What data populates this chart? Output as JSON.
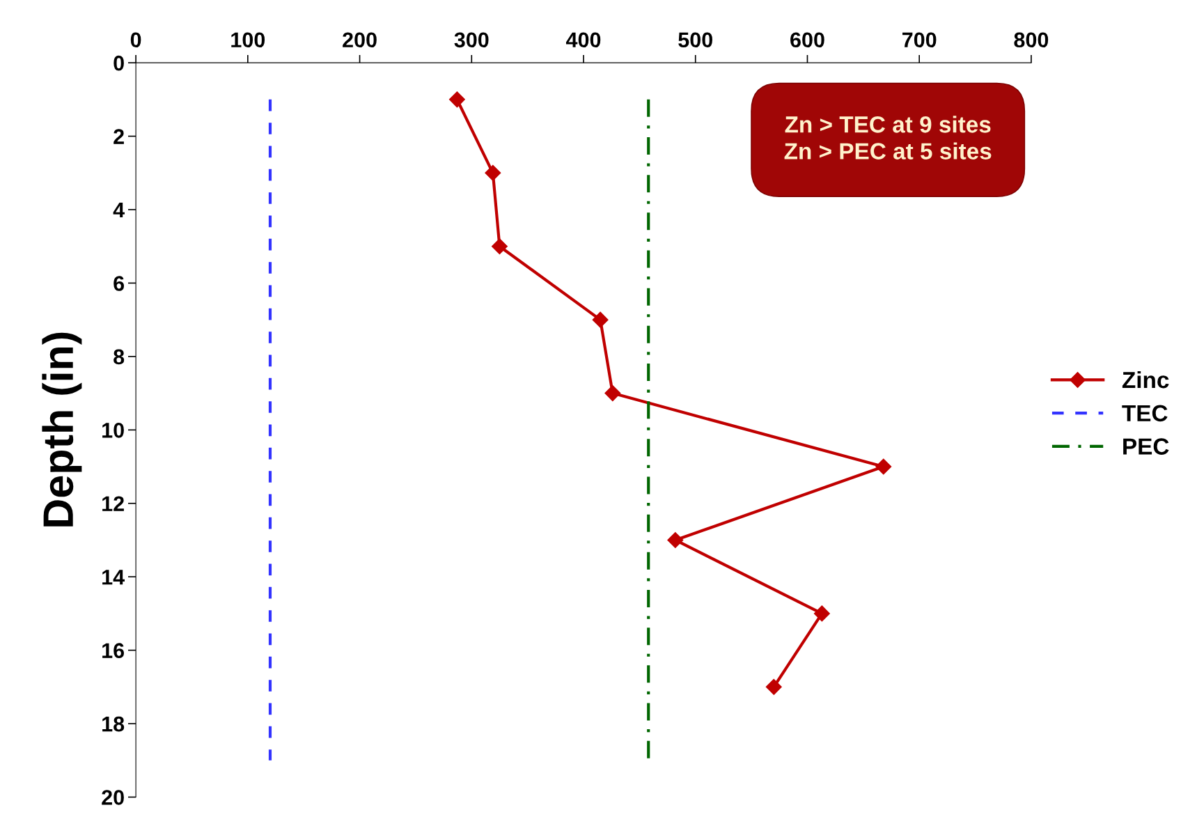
{
  "chart_data": {
    "type": "line",
    "ylabel": "Depth (in)",
    "series": [
      {
        "name": "Zinc",
        "color": "#c00000",
        "marker": "diamond",
        "line_style": "solid",
        "x": [
          287,
          319,
          325,
          415,
          426,
          668,
          482,
          613,
          570
        ],
        "values": [
          1,
          3,
          5,
          7,
          9,
          11,
          13,
          15,
          17
        ]
      },
      {
        "name": "TEC",
        "color": "#3333ff",
        "marker": "none",
        "line_style": "dashed",
        "x": [
          120,
          120
        ],
        "values": [
          1,
          19
        ]
      },
      {
        "name": "PEC",
        "color": "#006600",
        "marker": "none",
        "line_style": "dashdot",
        "x": [
          458,
          458
        ],
        "values": [
          1,
          19
        ]
      }
    ],
    "xlim": [
      0,
      800
    ],
    "xticks": [
      0,
      100,
      200,
      300,
      400,
      500,
      600,
      700,
      800
    ],
    "ylim": [
      20,
      0
    ],
    "yticks": [
      0,
      2,
      4,
      6,
      8,
      10,
      12,
      14,
      16,
      18,
      20
    ],
    "annotations": [
      "Zn > TEC at 9 sites\nZn > PEC at 5 sites"
    ],
    "grid": false,
    "legend": "right"
  }
}
